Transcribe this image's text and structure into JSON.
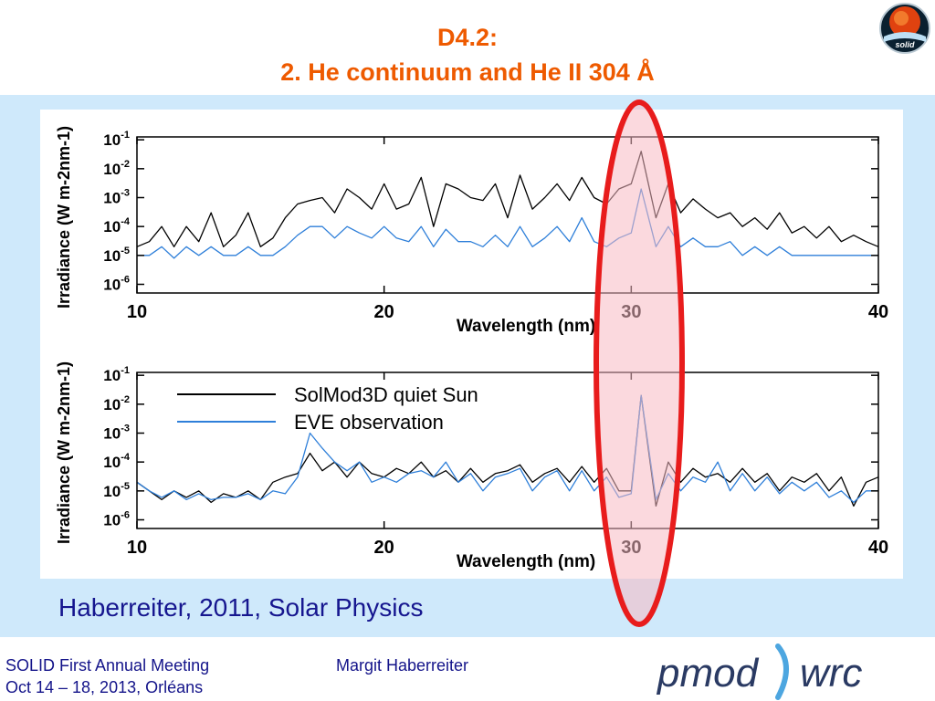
{
  "slide": {
    "title_line1": "D4.2:",
    "title_line2": "2. He continuum and He II 304 Å",
    "citation": "Haberreiter, 2011, Solar Physics",
    "footer": {
      "meeting": "SOLID First Annual Meeting",
      "dates": "Oct 14 – 18, 2013, Orléans",
      "presenter": "Margit Haberreiter"
    },
    "logos": {
      "solid": "solid",
      "pmod_left": "pmod",
      "pmod_right": "wrc"
    },
    "highlight": {
      "target_wavelength": 30.4,
      "fill_color": "#f7b9c3",
      "stroke_color": "#e81c1c"
    },
    "colors": {
      "title": "#ee5a00",
      "panel_background": "#cfe9fb",
      "text_blue": "#16168f"
    }
  },
  "chart_data": [
    {
      "type": "line",
      "xlabel": "Wavelength (nm)",
      "ylabel": "Irradiance (W m-2nm-1)",
      "xlim": [
        10,
        40
      ],
      "xticks": [
        10,
        20,
        30,
        40
      ],
      "yscale": "log",
      "ylim_exponent": [
        -6.3,
        -0.9
      ],
      "yticks_exponent": [
        -1,
        -2,
        -3,
        -4,
        -5,
        -6
      ],
      "legend_visible": false,
      "series": [
        {
          "color": "#000000",
          "x": [
            10,
            10.5,
            11,
            11.5,
            12,
            12.5,
            13,
            13.5,
            14,
            14.5,
            15,
            15.5,
            16,
            16.5,
            17,
            17.5,
            18,
            18.5,
            19,
            19.5,
            20,
            20.5,
            21,
            21.5,
            22,
            22.5,
            23,
            23.5,
            24,
            24.5,
            25,
            25.5,
            26,
            26.5,
            27,
            27.5,
            28,
            28.5,
            29,
            29.5,
            30,
            30.4,
            31,
            31.5,
            32,
            32.5,
            33,
            33.5,
            34,
            34.5,
            35,
            35.5,
            36,
            36.5,
            37,
            37.5,
            38,
            38.5,
            39,
            39.5,
            40
          ],
          "y": [
            2e-05,
            3e-05,
            0.0001,
            2e-05,
            0.0001,
            3e-05,
            0.0003,
            2e-05,
            5e-05,
            0.0003,
            2e-05,
            4e-05,
            0.0002,
            0.0006,
            0.0008,
            0.001,
            0.0003,
            0.002,
            0.001,
            0.0004,
            0.003,
            0.0004,
            0.0006,
            0.005,
            0.0001,
            0.003,
            0.002,
            0.001,
            0.0008,
            0.003,
            0.0002,
            0.006,
            0.0004,
            0.001,
            0.003,
            0.0008,
            0.005,
            0.001,
            0.0006,
            0.002,
            0.003,
            0.04,
            0.0002,
            0.003,
            0.0003,
            0.0009,
            0.0004,
            0.0002,
            0.0003,
            0.0001,
            0.0002,
            8e-05,
            0.0003,
            6e-05,
            0.0001,
            4e-05,
            0.0001,
            3e-05,
            5e-05,
            3e-05,
            2e-05
          ]
        },
        {
          "color": "#2e7fd9",
          "x": [
            10,
            10.5,
            11,
            11.5,
            12,
            12.5,
            13,
            13.5,
            14,
            14.5,
            15,
            15.5,
            16,
            16.5,
            17,
            17.5,
            18,
            18.5,
            19,
            19.5,
            20,
            20.5,
            21,
            21.5,
            22,
            22.5,
            23,
            23.5,
            24,
            24.5,
            25,
            25.5,
            26,
            26.5,
            27,
            27.5,
            28,
            28.5,
            29,
            29.5,
            30,
            30.4,
            31,
            31.5,
            32,
            32.5,
            33,
            33.5,
            34,
            34.5,
            35,
            35.5,
            36,
            36.5,
            37,
            37.5,
            38,
            38.5,
            39,
            39.5,
            40
          ],
          "y": [
            1e-05,
            1e-05,
            2e-05,
            8e-06,
            2e-05,
            1e-05,
            2e-05,
            1e-05,
            1e-05,
            2e-05,
            1e-05,
            1e-05,
            2e-05,
            5e-05,
            0.0001,
            0.0001,
            4e-05,
            0.0001,
            6e-05,
            4e-05,
            0.0001,
            4e-05,
            3e-05,
            0.0001,
            2e-05,
            8e-05,
            3e-05,
            3e-05,
            2e-05,
            5e-05,
            2e-05,
            0.0001,
            2e-05,
            4e-05,
            0.0001,
            3e-05,
            0.0002,
            3e-05,
            2e-05,
            4e-05,
            6e-05,
            0.002,
            2e-05,
            0.0001,
            2e-05,
            4e-05,
            2e-05,
            2e-05,
            3e-05,
            1e-05,
            2e-05,
            1e-05,
            2e-05,
            1e-05,
            1e-05,
            1e-05,
            1e-05,
            1e-05,
            1e-05,
            1e-05,
            1e-05
          ]
        }
      ]
    },
    {
      "type": "line",
      "xlabel": "Wavelength (nm)",
      "ylabel": "Irradiance (W m-2nm-1)",
      "xlim": [
        10,
        40
      ],
      "xticks": [
        10,
        20,
        30,
        40
      ],
      "yscale": "log",
      "ylim_exponent": [
        -6.3,
        -0.9
      ],
      "yticks_exponent": [
        -1,
        -2,
        -3,
        -4,
        -5,
        -6
      ],
      "legend": "top-left",
      "series": [
        {
          "name": "SolMod3D quiet Sun",
          "color": "#000000",
          "x": [
            10,
            10.5,
            11,
            11.5,
            12,
            12.5,
            13,
            13.5,
            14,
            14.5,
            15,
            15.5,
            16,
            16.5,
            17,
            17.5,
            18,
            18.5,
            19,
            19.5,
            20,
            20.5,
            21,
            21.5,
            22,
            22.5,
            23,
            23.5,
            24,
            24.5,
            25,
            25.5,
            26,
            26.5,
            27,
            27.5,
            28,
            28.5,
            29,
            29.5,
            30,
            30.4,
            31,
            31.5,
            32,
            32.5,
            33,
            33.5,
            34,
            34.5,
            35,
            35.5,
            36,
            36.5,
            37,
            37.5,
            38,
            38.5,
            39,
            39.5,
            40
          ],
          "y": [
            2e-05,
            1e-05,
            5e-06,
            1e-05,
            6e-06,
            1e-05,
            4e-06,
            8e-06,
            6e-06,
            1e-05,
            5e-06,
            2e-05,
            3e-05,
            4e-05,
            0.0002,
            5e-05,
            0.0001,
            3e-05,
            0.0001,
            4e-05,
            3e-05,
            6e-05,
            4e-05,
            0.0001,
            3e-05,
            5e-05,
            2e-05,
            6e-05,
            2e-05,
            4e-05,
            5e-05,
            8e-05,
            2e-05,
            4e-05,
            6e-05,
            2e-05,
            7e-05,
            2e-05,
            6e-05,
            1e-05,
            1e-05,
            0.02,
            3e-06,
            0.0001,
            2e-05,
            6e-05,
            3e-05,
            4e-05,
            2e-05,
            6e-05,
            2e-05,
            4e-05,
            1e-05,
            3e-05,
            2e-05,
            4e-05,
            1e-05,
            3e-05,
            3e-06,
            2e-05,
            3e-05
          ]
        },
        {
          "name": "EVE observation",
          "color": "#2e7fd9",
          "x": [
            10,
            10.5,
            11,
            11.5,
            12,
            12.5,
            13,
            13.5,
            14,
            14.5,
            15,
            15.5,
            16,
            16.5,
            17,
            17.5,
            18,
            18.5,
            19,
            19.5,
            20,
            20.5,
            21,
            21.5,
            22,
            22.5,
            23,
            23.5,
            24,
            24.5,
            25,
            25.5,
            26,
            26.5,
            27,
            27.5,
            28,
            28.5,
            29,
            29.5,
            30,
            30.4,
            31,
            31.5,
            32,
            32.5,
            33,
            33.5,
            34,
            34.5,
            35,
            35.5,
            36,
            36.5,
            37,
            37.5,
            38,
            38.5,
            39,
            39.5,
            40
          ],
          "y": [
            2e-05,
            1e-05,
            6e-06,
            1e-05,
            5e-06,
            8e-06,
            5e-06,
            6e-06,
            6e-06,
            8e-06,
            5e-06,
            1e-05,
            8e-06,
            3e-05,
            0.001,
            0.0003,
            0.0001,
            5e-05,
            0.0001,
            2e-05,
            3e-05,
            2e-05,
            4e-05,
            5e-05,
            3e-05,
            0.0001,
            2e-05,
            4e-05,
            1e-05,
            3e-05,
            4e-05,
            6e-05,
            1e-05,
            3e-05,
            5e-05,
            1e-05,
            5e-05,
            1e-05,
            3e-05,
            6e-06,
            8e-06,
            0.02,
            5e-06,
            4e-05,
            1e-05,
            3e-05,
            2e-05,
            0.0001,
            1e-05,
            4e-05,
            1e-05,
            3e-05,
            8e-06,
            2e-05,
            1e-05,
            2e-05,
            6e-06,
            1e-05,
            4e-06,
            1e-05,
            1e-05
          ]
        }
      ]
    }
  ]
}
